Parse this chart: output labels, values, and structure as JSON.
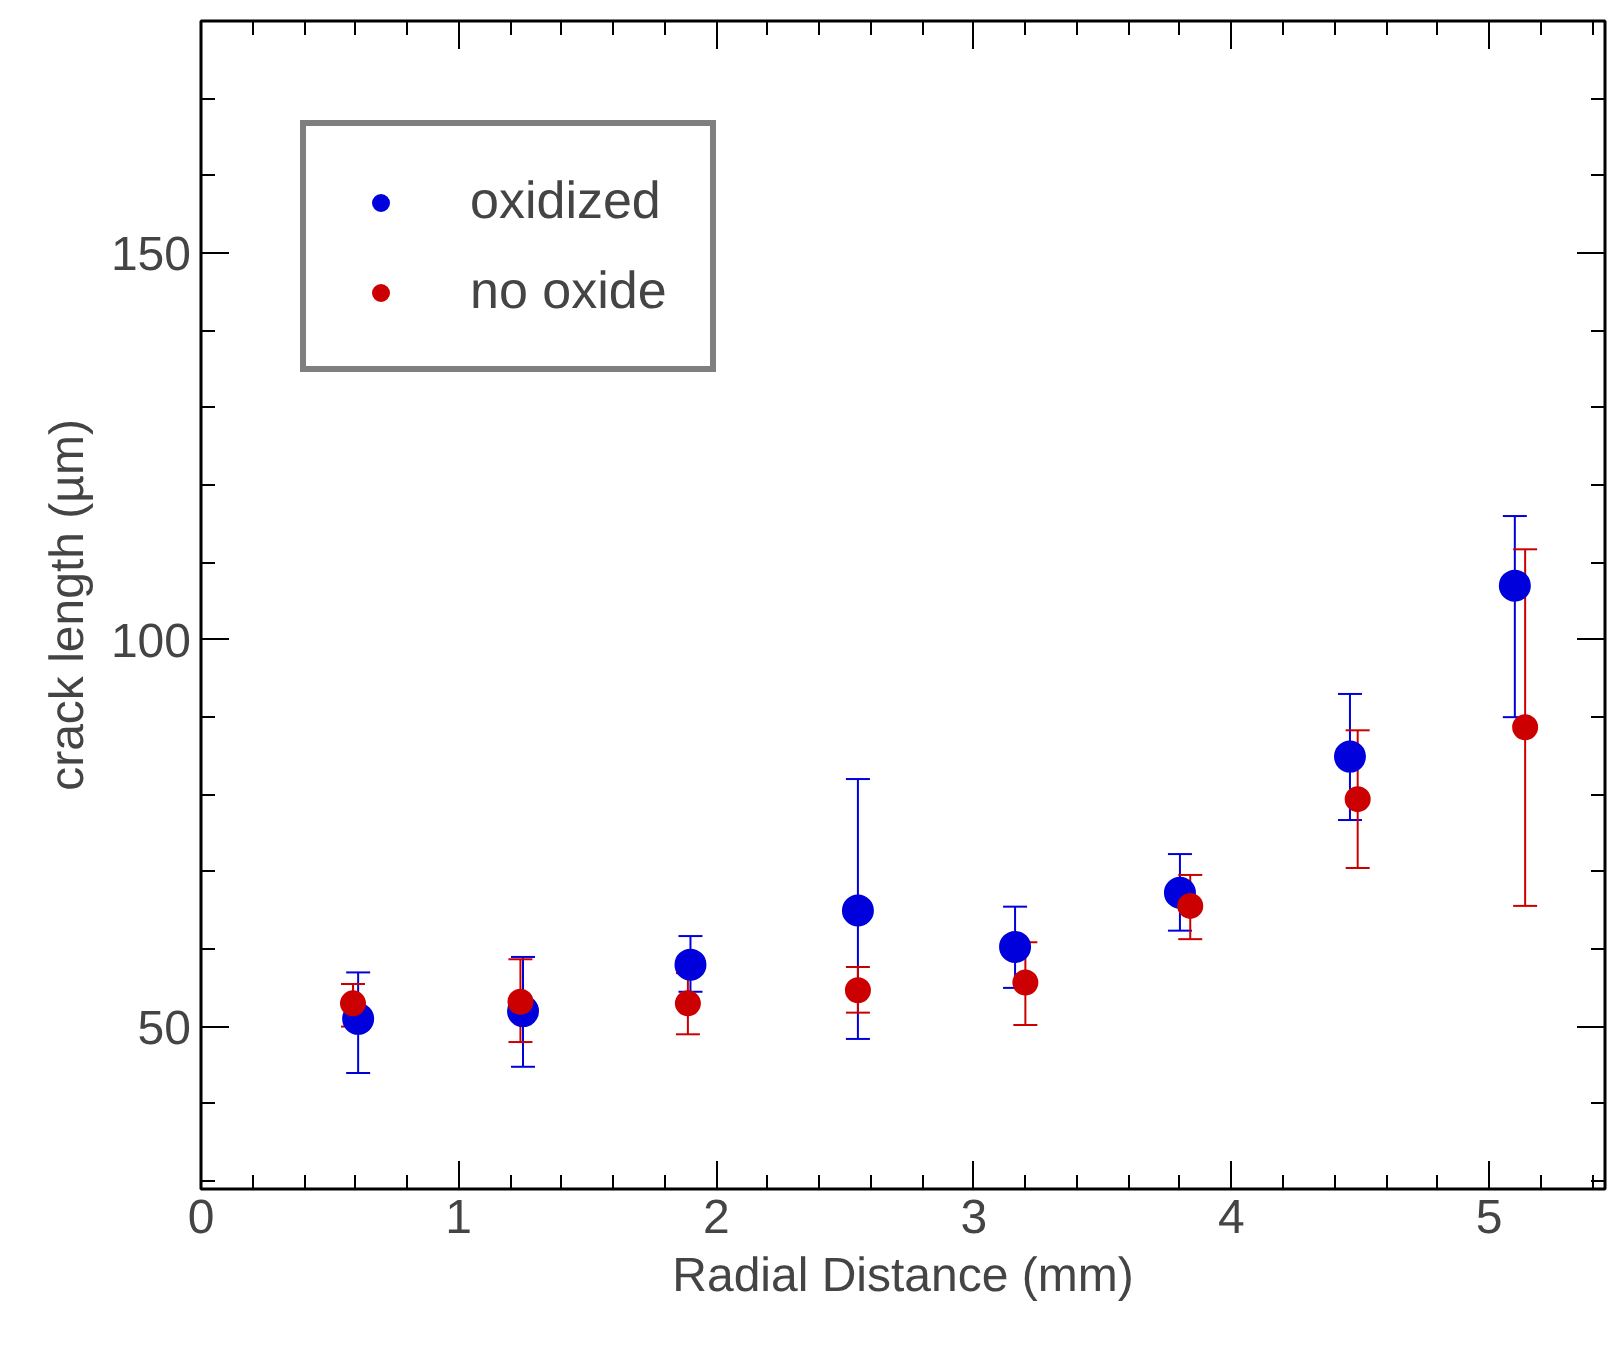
{
  "chart_data": {
    "type": "scatter",
    "xlabel": "Radial Distance (mm)",
    "ylabel": "crack length (µm)",
    "xlim": [
      0,
      5.45
    ],
    "xticks": [
      0,
      1,
      2,
      3,
      4,
      5
    ],
    "ylim": [
      29,
      180
    ],
    "yticks": [
      50,
      100,
      150
    ],
    "marker": "circle",
    "legend": "top left",
    "grid": false,
    "series": [
      {
        "name": "oxidized",
        "color": "#0000dd",
        "x": [
          0.61,
          1.25,
          1.9,
          2.55,
          3.16,
          3.8,
          4.46,
          5.1
        ],
        "values": [
          51,
          52,
          58,
          65,
          60.3,
          67.3,
          84.9,
          107
        ],
        "errors": [
          [
            44,
            57
          ],
          [
            44.8,
            59
          ],
          [
            54.5,
            61.7
          ],
          [
            48.4,
            82
          ],
          [
            55,
            65.5
          ],
          [
            62.4,
            72.3
          ],
          [
            76.7,
            93
          ],
          [
            90,
            116
          ]
        ]
      },
      {
        "name": "no oxide",
        "color": "#cc0000",
        "x": [
          0.59,
          1.24,
          1.89,
          2.55,
          3.2,
          3.84,
          4.49,
          5.14
        ],
        "values": [
          53,
          53.2,
          53,
          54.7,
          55.7,
          65.6,
          79.4,
          88.7
        ],
        "errors": [
          [
            50,
            55.5
          ],
          [
            48,
            58.7
          ],
          [
            49,
            56.9
          ],
          [
            51.8,
            57.7
          ],
          [
            50.2,
            60.9
          ],
          [
            61.3,
            69.6
          ],
          [
            70.5,
            88.3
          ],
          [
            65.6,
            111.7
          ]
        ]
      }
    ]
  }
}
